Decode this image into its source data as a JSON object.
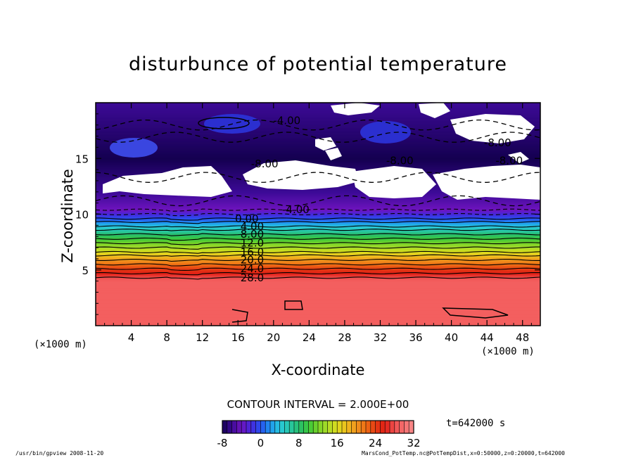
{
  "chart_data": {
    "type": "heatmap",
    "title": "disturbunce of potential temperature",
    "xlabel": "X-coordinate",
    "ylabel": "Z-coordinate",
    "x_unit": "(×1000 m)",
    "x_unit_right": "(×1000 m)",
    "xlim": [
      0,
      50
    ],
    "ylim": [
      0,
      20
    ],
    "x_ticks": [
      4,
      8,
      12,
      16,
      20,
      24,
      28,
      32,
      36,
      40,
      44,
      48
    ],
    "y_ticks": [
      5,
      10,
      15
    ],
    "contour_interval_text": "CONTOUR INTERVAL = 2.000E+00",
    "colorbar": {
      "min": -8,
      "max": 32,
      "ticks": [
        -8,
        0,
        8,
        16,
        24,
        32
      ]
    },
    "contour_labels": [
      {
        "text": "-4.00",
        "x": 21.5,
        "z": 18.4
      },
      {
        "text": "-8.00",
        "x": 45.2,
        "z": 16.4
      },
      {
        "text": "-8.00",
        "x": 34.2,
        "z": 14.8
      },
      {
        "text": "-8.00",
        "x": 46.5,
        "z": 14.8
      },
      {
        "text": "-8.00",
        "x": 19.0,
        "z": 14.5
      },
      {
        "text": "-4.00",
        "x": 22.5,
        "z": 10.4
      },
      {
        "text": "0.00",
        "x": 17.0,
        "z": 9.6
      },
      {
        "text": "4.00",
        "x": 17.6,
        "z": 8.9
      },
      {
        "text": "8.00",
        "x": 17.6,
        "z": 8.2
      },
      {
        "text": "12.0",
        "x": 17.6,
        "z": 7.4
      },
      {
        "text": "16.0",
        "x": 17.6,
        "z": 6.6
      },
      {
        "text": "20.0",
        "x": 17.6,
        "z": 5.9
      },
      {
        "text": "24.0",
        "x": 17.6,
        "z": 5.1
      },
      {
        "text": "28.0",
        "x": 17.6,
        "z": 4.3
      }
    ],
    "profile_by_height": [
      {
        "z": 0.0,
        "value": 29
      },
      {
        "z": 4.0,
        "value": 29
      },
      {
        "z": 4.3,
        "value": 28
      },
      {
        "z": 5.1,
        "value": 24
      },
      {
        "z": 5.9,
        "value": 20
      },
      {
        "z": 6.6,
        "value": 16
      },
      {
        "z": 7.4,
        "value": 12
      },
      {
        "z": 8.2,
        "value": 8
      },
      {
        "z": 8.9,
        "value": 4
      },
      {
        "z": 9.6,
        "value": 0
      },
      {
        "z": 10.4,
        "value": -4
      },
      {
        "z": 12.0,
        "value": -6
      },
      {
        "z": 15.0,
        "value": -8
      },
      {
        "z": 20.0,
        "value": -6
      }
    ]
  },
  "time_label": "t=642000 s",
  "footer_left": "/usr/bin/gpview   2008-11-20",
  "footer_right": "MarsCond_PotTemp.nc@PotTempDist,x=0:50000,z=0:20000,t=642000"
}
